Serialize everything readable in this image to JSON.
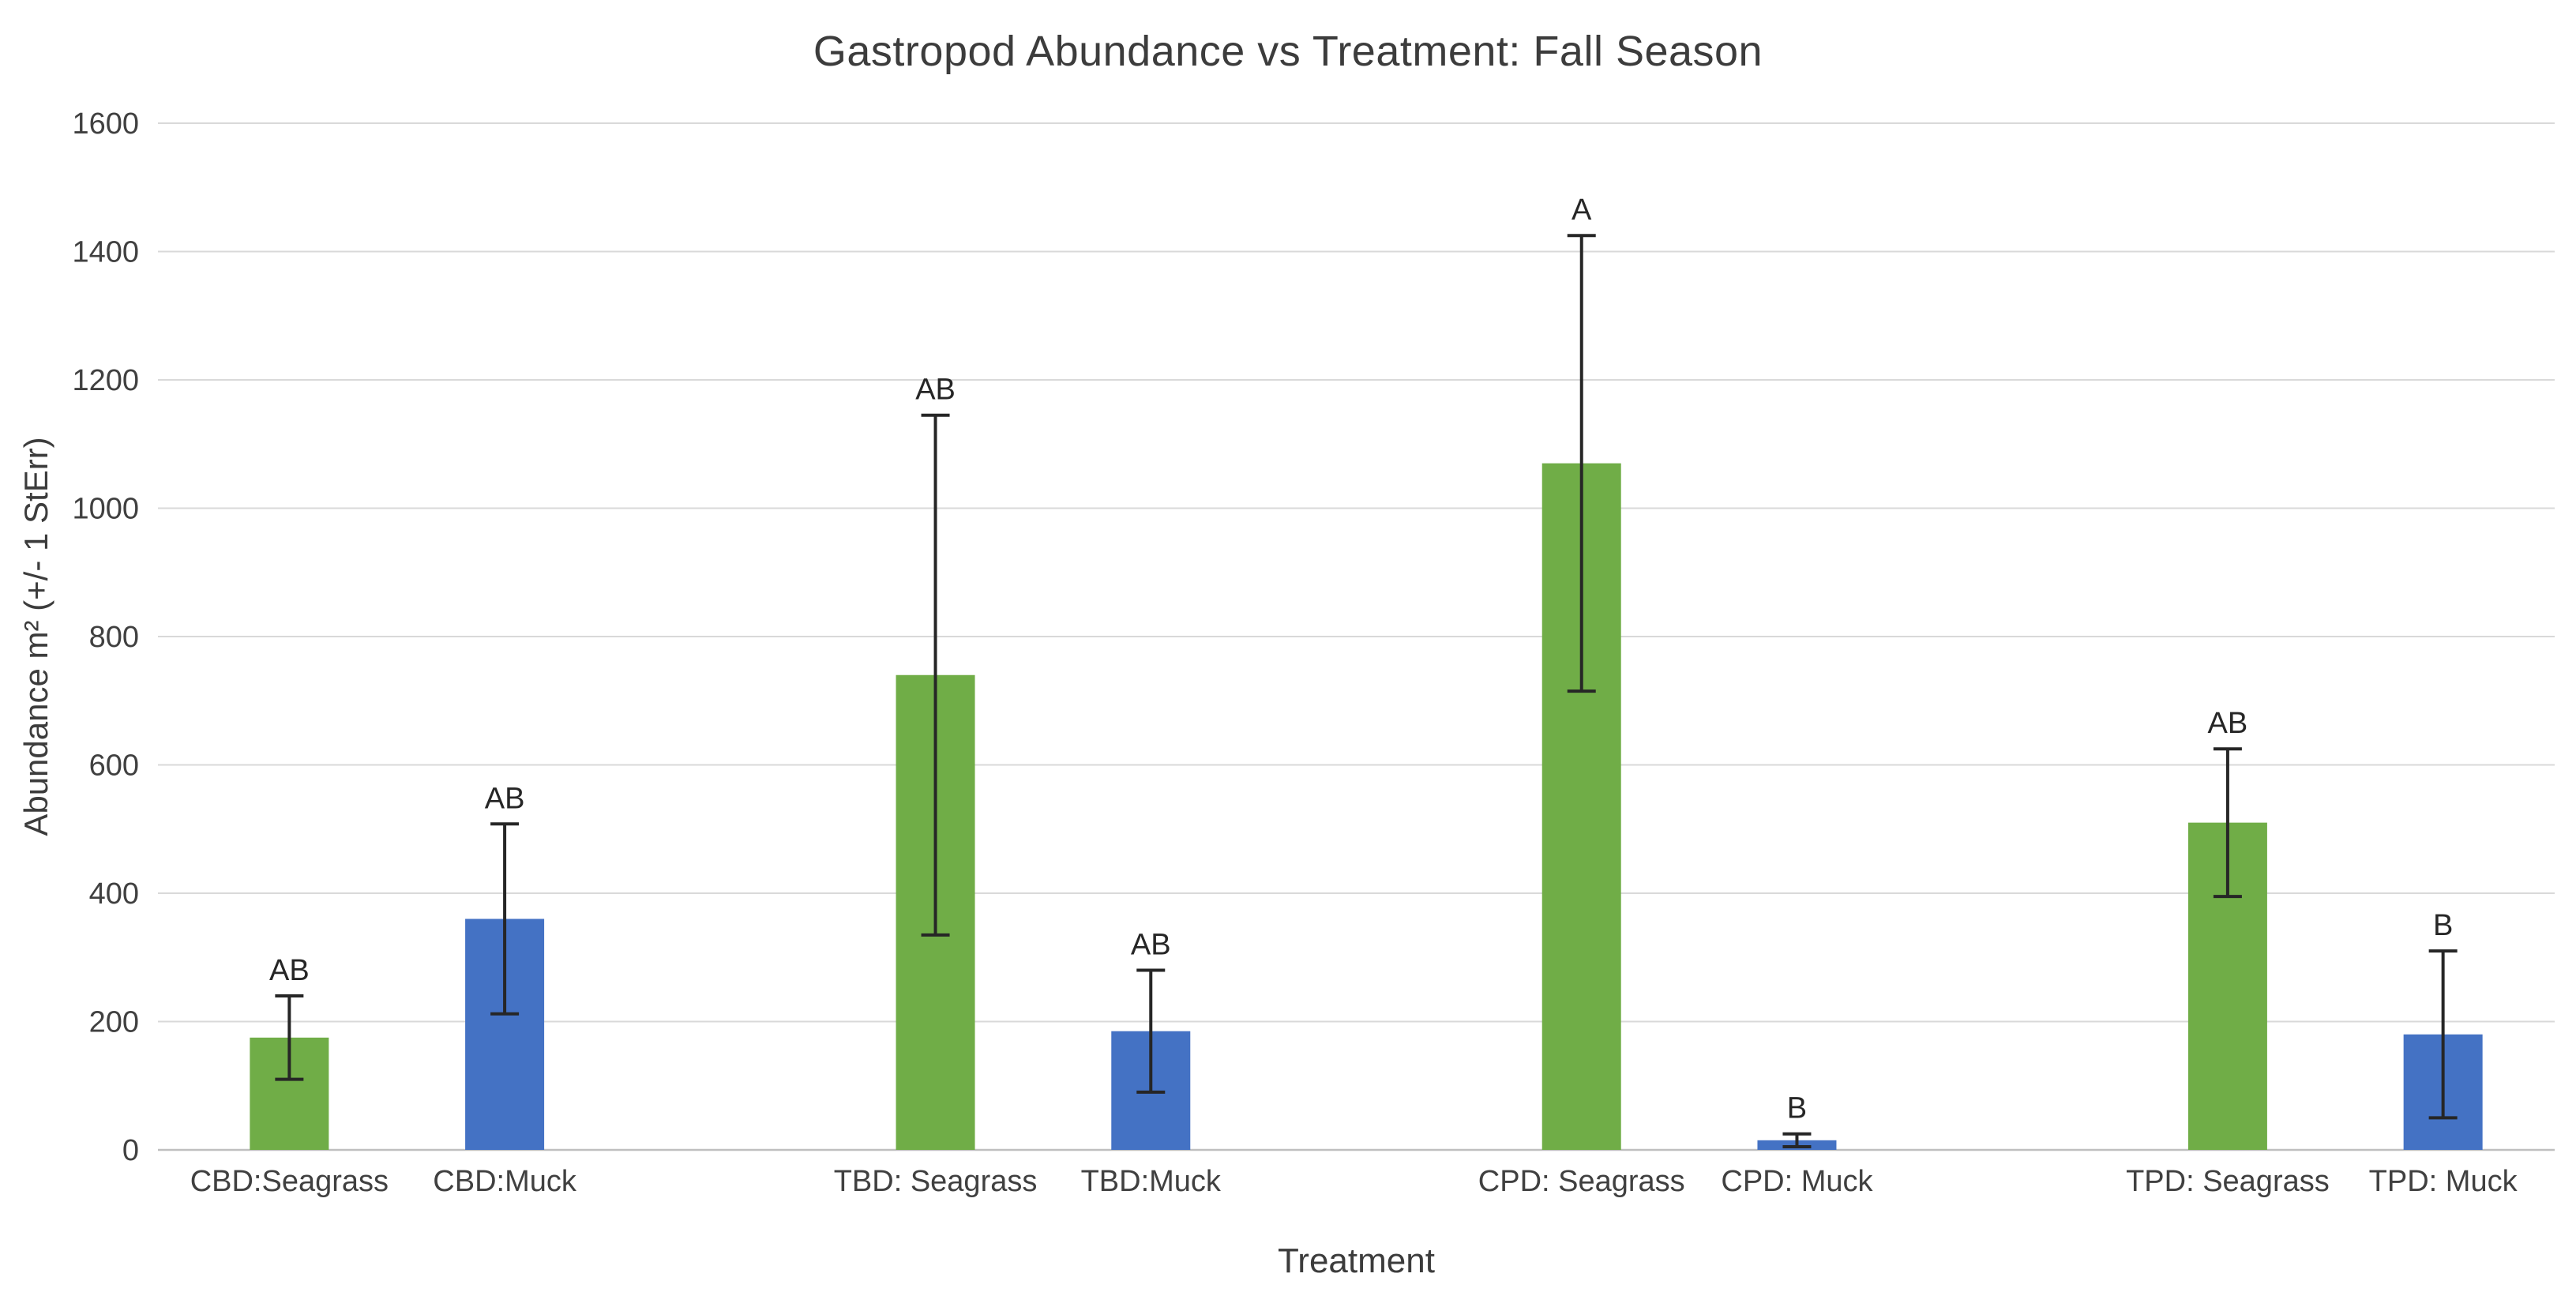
{
  "chart_data": {
    "type": "bar",
    "title": "Gastropod Abundance vs Treatment: Fall Season",
    "xlabel": "Treatment",
    "ylabel": "Abundance m² (+/- 1 StErr)",
    "ylim": [
      0,
      1600
    ],
    "ytick_step": 200,
    "grid": true,
    "legend": false,
    "group_size": 2,
    "categories": [
      "CBD:Seagrass",
      "CBD:Muck",
      "TBD: Seagrass",
      "TBD:Muck",
      "CPD: Seagrass",
      "CPD: Muck",
      "TPD: Seagrass",
      "TPD: Muck"
    ],
    "values": [
      175,
      360,
      740,
      185,
      1070,
      15,
      510,
      180
    ],
    "errors": [
      65,
      148,
      405,
      95,
      355,
      10,
      115,
      130
    ],
    "significance_letters": [
      "AB",
      "AB",
      "AB",
      "AB",
      "A",
      "B",
      "AB",
      "B"
    ],
    "bar_colors": [
      "#70AD47",
      "#4472C4",
      "#70AD47",
      "#4472C4",
      "#70AD47",
      "#4472C4",
      "#70AD47",
      "#4472C4"
    ],
    "colors": {
      "seagrass_bar": "#70AD47",
      "muck_bar": "#4472C4",
      "gridline": "#D9D9D9",
      "axis_line": "#BFBFBF",
      "text": "#404040",
      "error_bar": "#262626",
      "title_text": "#3c3c3c"
    }
  }
}
